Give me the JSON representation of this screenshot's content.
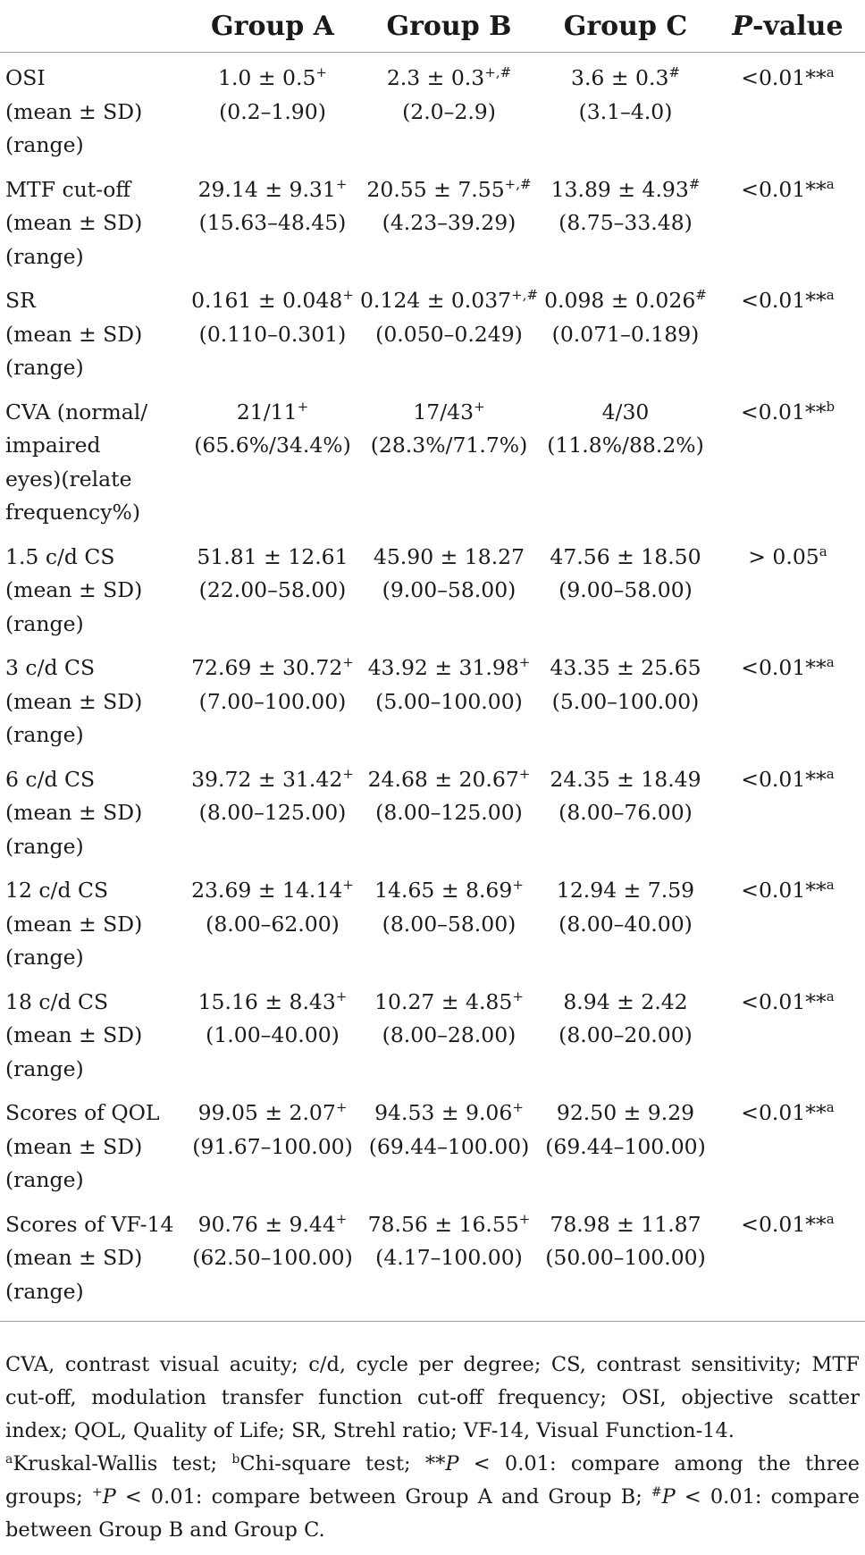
{
  "headers": [
    "",
    "Group A",
    "Group B",
    "Group C",
    "P-value"
  ],
  "header_p_italic": "P",
  "header_p_rest": "-value",
  "rows": [
    {
      "label": [
        "OSI",
        "(mean ± SD)",
        "(range)"
      ],
      "a": {
        "mean": "1.0 ± 0.5",
        "sup": "+",
        "range": "(0.2–1.90)"
      },
      "b": {
        "mean": "2.3 ± 0.3",
        "sup": "+,#",
        "range": "(2.0–2.9)"
      },
      "c": {
        "mean": "3.6 ± 0.3",
        "sup": "#",
        "range": "(3.1–4.0)"
      },
      "p": {
        "value": "<0.01**",
        "sup": "a"
      }
    },
    {
      "label": [
        "MTF cut-off",
        "(mean ± SD)",
        "(range)"
      ],
      "a": {
        "mean": "29.14 ± 9.31",
        "sup": "+",
        "range": "(15.63–48.45)"
      },
      "b": {
        "mean": "20.55 ± 7.55",
        "sup": "+,#",
        "range": "(4.23–39.29)"
      },
      "c": {
        "mean": "13.89 ± 4.93",
        "sup": "#",
        "range": "(8.75–33.48)"
      },
      "p": {
        "value": "<0.01**",
        "sup": "a"
      }
    },
    {
      "label": [
        "SR",
        "(mean ± SD)",
        "(range)"
      ],
      "a": {
        "mean": "0.161 ± 0.048",
        "sup": "+",
        "range": "(0.110–0.301)"
      },
      "b": {
        "mean": "0.124 ± 0.037",
        "sup": "+,#",
        "range": "(0.050–0.249)"
      },
      "c": {
        "mean": "0.098 ± 0.026",
        "sup": "#",
        "range": "(0.071–0.189)"
      },
      "p": {
        "value": "<0.01**",
        "sup": "a"
      }
    },
    {
      "label": [
        "CVA (normal/",
        "impaired",
        "eyes)(relate",
        "frequency%)"
      ],
      "a": {
        "mean": "21/11",
        "sup": "+",
        "range": "(65.6%/34.4%)"
      },
      "b": {
        "mean": "17/43",
        "sup": "+",
        "range": "(28.3%/71.7%)"
      },
      "c": {
        "mean": "4/30",
        "sup": "",
        "range": "(11.8%/88.2%)"
      },
      "p": {
        "value": "<0.01**",
        "sup": "b"
      }
    },
    {
      "label": [
        "1.5 c/d CS",
        "(mean ± SD)",
        "(range)"
      ],
      "a": {
        "mean": "51.81 ± 12.61",
        "sup": "",
        "range": "(22.00–58.00)"
      },
      "b": {
        "mean": "45.90 ± 18.27",
        "sup": "",
        "range": "(9.00–58.00)"
      },
      "c": {
        "mean": "47.56 ± 18.50",
        "sup": "",
        "range": "(9.00–58.00)"
      },
      "p": {
        "value": "> 0.05",
        "sup": "a"
      }
    },
    {
      "label": [
        "3 c/d CS",
        "(mean ± SD)",
        "(range)"
      ],
      "a": {
        "mean": "72.69 ± 30.72",
        "sup": "+",
        "range": "(7.00–100.00)"
      },
      "b": {
        "mean": "43.92 ± 31.98",
        "sup": "+",
        "range": "(5.00–100.00)"
      },
      "c": {
        "mean": "43.35 ± 25.65",
        "sup": "",
        "range": "(5.00–100.00)"
      },
      "p": {
        "value": "<0.01**",
        "sup": "a"
      }
    },
    {
      "label": [
        "6 c/d CS",
        "(mean ± SD)",
        "(range)"
      ],
      "a": {
        "mean": "39.72 ± 31.42",
        "sup": "+",
        "range": "(8.00–125.00)"
      },
      "b": {
        "mean": "24.68 ± 20.67",
        "sup": "+",
        "range": "(8.00–125.00)"
      },
      "c": {
        "mean": "24.35 ± 18.49",
        "sup": "",
        "range": "(8.00–76.00)"
      },
      "p": {
        "value": "<0.01**",
        "sup": "a"
      }
    },
    {
      "label": [
        "12 c/d CS",
        "(mean ± SD)",
        "(range)"
      ],
      "a": {
        "mean": "23.69 ± 14.14",
        "sup": "+",
        "range": "(8.00–62.00)"
      },
      "b": {
        "mean": "14.65 ± 8.69",
        "sup": "+",
        "range": "(8.00–58.00)"
      },
      "c": {
        "mean": "12.94 ± 7.59",
        "sup": "",
        "range": "(8.00–40.00)"
      },
      "p": {
        "value": "<0.01**",
        "sup": "a"
      }
    },
    {
      "label": [
        "18 c/d CS",
        "(mean ± SD)",
        "(range)"
      ],
      "a": {
        "mean": "15.16 ± 8.43",
        "sup": "+",
        "range": "(1.00–40.00)"
      },
      "b": {
        "mean": "10.27 ± 4.85",
        "sup": "+",
        "range": "(8.00–28.00)"
      },
      "c": {
        "mean": "8.94 ± 2.42",
        "sup": "",
        "range": "(8.00–20.00)"
      },
      "p": {
        "value": "<0.01**",
        "sup": "a"
      }
    },
    {
      "label": [
        "Scores of QOL",
        "(mean ± SD)",
        "(range)"
      ],
      "a": {
        "mean": "99.05 ± 2.07",
        "sup": "+",
        "range": "(91.67–100.00)"
      },
      "b": {
        "mean": "94.53 ± 9.06",
        "sup": "+",
        "range": "(69.44–100.00)"
      },
      "c": {
        "mean": "92.50 ± 9.29",
        "sup": "",
        "range": "(69.44–100.00)"
      },
      "p": {
        "value": "<0.01**",
        "sup": "a"
      }
    },
    {
      "label": [
        "Scores of VF-14",
        "(mean ± SD)",
        "(range)"
      ],
      "a": {
        "mean": "90.76 ± 9.44",
        "sup": "+",
        "range": "(62.50–100.00)"
      },
      "b": {
        "mean": "78.56 ± 16.55",
        "sup": "+",
        "range": "(4.17–100.00)"
      },
      "c": {
        "mean": "78.98 ± 11.87",
        "sup": "",
        "range": "(50.00–100.00)"
      },
      "p": {
        "value": "<0.01**",
        "sup": "a"
      }
    }
  ],
  "notes": {
    "abbreviations": "CVA, contrast visual acuity; c/d, cycle per degree; CS, contrast sensitivity; MTF cut-off, modulation transfer function cut-off frequency; OSI, objective scatter index; QOL, Quality of Life; SR, Strehl ratio; VF-14, Visual Function-14.",
    "footnotes": [
      {
        "sup": "a",
        "text": "Kruskal-Wallis test; "
      },
      {
        "sup": "b",
        "text": "Chi-square test; **"
      },
      {
        "sup": "",
        "text": "P < 0.01: compare among the three groups; "
      },
      {
        "sup": "+",
        "text": ""
      },
      {
        "sup": "",
        "text": "P < 0.01: compare between Group A and Group B; "
      },
      {
        "sup": "#",
        "text": ""
      },
      {
        "sup": "",
        "text": "P < 0.01: compare between Group B and Group C."
      }
    ]
  }
}
